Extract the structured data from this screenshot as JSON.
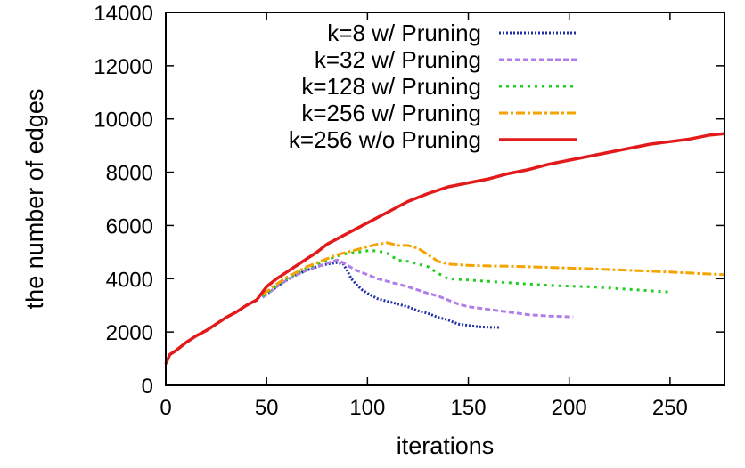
{
  "chart_data": {
    "type": "line",
    "xlabel": "iterations",
    "ylabel": "the number of edges",
    "xlim": [
      0,
      277
    ],
    "ylim": [
      0,
      14000
    ],
    "x_ticks": [
      0,
      50,
      100,
      150,
      200,
      250
    ],
    "y_ticks": [
      0,
      2000,
      4000,
      6000,
      8000,
      10000,
      12000,
      14000
    ],
    "grid": false,
    "legend_position": "top-right",
    "series": [
      {
        "name": "k=8 w/ Pruning",
        "color": "#1f2fa8",
        "dash": "2,2",
        "values": [
          [
            48,
            3300
          ],
          [
            55,
            3700
          ],
          [
            60,
            3950
          ],
          [
            65,
            4150
          ],
          [
            70,
            4320
          ],
          [
            75,
            4450
          ],
          [
            80,
            4550
          ],
          [
            85,
            4600
          ],
          [
            88,
            4550
          ],
          [
            90,
            4300
          ],
          [
            92,
            4000
          ],
          [
            95,
            3750
          ],
          [
            97,
            3600
          ],
          [
            100,
            3450
          ],
          [
            105,
            3250
          ],
          [
            110,
            3150
          ],
          [
            115,
            3050
          ],
          [
            120,
            2950
          ],
          [
            125,
            2800
          ],
          [
            130,
            2700
          ],
          [
            135,
            2550
          ],
          [
            140,
            2450
          ],
          [
            145,
            2300
          ],
          [
            150,
            2250
          ],
          [
            155,
            2200
          ],
          [
            160,
            2180
          ],
          [
            166,
            2170
          ]
        ]
      },
      {
        "name": "k=32 w/ Pruning",
        "color": "#b07ee8",
        "dash": "6,3",
        "values": [
          [
            48,
            3300
          ],
          [
            55,
            3700
          ],
          [
            60,
            3950
          ],
          [
            65,
            4150
          ],
          [
            70,
            4320
          ],
          [
            75,
            4450
          ],
          [
            80,
            4580
          ],
          [
            85,
            4700
          ],
          [
            88,
            4600
          ],
          [
            90,
            4500
          ],
          [
            95,
            4300
          ],
          [
            100,
            4150
          ],
          [
            105,
            4000
          ],
          [
            110,
            3900
          ],
          [
            115,
            3800
          ],
          [
            120,
            3700
          ],
          [
            130,
            3450
          ],
          [
            135,
            3350
          ],
          [
            140,
            3200
          ],
          [
            145,
            3050
          ],
          [
            150,
            2950
          ],
          [
            160,
            2850
          ],
          [
            170,
            2750
          ],
          [
            180,
            2650
          ],
          [
            190,
            2600
          ],
          [
            202,
            2570
          ]
        ]
      },
      {
        "name": "k=128 w/ Pruning",
        "color": "#22cc22",
        "dash": "3,5",
        "values": [
          [
            48,
            3350
          ],
          [
            55,
            3750
          ],
          [
            60,
            4000
          ],
          [
            65,
            4200
          ],
          [
            70,
            4400
          ],
          [
            75,
            4550
          ],
          [
            80,
            4700
          ],
          [
            85,
            4850
          ],
          [
            90,
            4950
          ],
          [
            95,
            5000
          ],
          [
            100,
            5050
          ],
          [
            105,
            5050
          ],
          [
            110,
            4950
          ],
          [
            115,
            4700
          ],
          [
            120,
            4650
          ],
          [
            125,
            4550
          ],
          [
            130,
            4450
          ],
          [
            135,
            4200
          ],
          [
            140,
            4000
          ],
          [
            150,
            3950
          ],
          [
            160,
            3900
          ],
          [
            170,
            3850
          ],
          [
            180,
            3800
          ],
          [
            190,
            3750
          ],
          [
            200,
            3720
          ],
          [
            210,
            3700
          ],
          [
            220,
            3650
          ],
          [
            230,
            3600
          ],
          [
            240,
            3550
          ],
          [
            250,
            3500
          ]
        ]
      },
      {
        "name": "k=256 w/ Pruning",
        "color": "#f5a300",
        "dash": "10,3,3,3",
        "values": [
          [
            48,
            3400
          ],
          [
            55,
            3800
          ],
          [
            60,
            4050
          ],
          [
            65,
            4250
          ],
          [
            70,
            4450
          ],
          [
            75,
            4600
          ],
          [
            80,
            4750
          ],
          [
            85,
            4900
          ],
          [
            90,
            5000
          ],
          [
            95,
            5100
          ],
          [
            100,
            5200
          ],
          [
            105,
            5300
          ],
          [
            110,
            5350
          ],
          [
            115,
            5250
          ],
          [
            120,
            5250
          ],
          [
            125,
            5150
          ],
          [
            130,
            4900
          ],
          [
            135,
            4650
          ],
          [
            140,
            4550
          ],
          [
            150,
            4500
          ],
          [
            160,
            4480
          ],
          [
            175,
            4460
          ],
          [
            200,
            4400
          ],
          [
            225,
            4330
          ],
          [
            250,
            4250
          ],
          [
            277,
            4150
          ]
        ]
      },
      {
        "name": "k=256 w/o Pruning",
        "color": "#e31a1c",
        "dash": "",
        "values": [
          [
            0,
            800
          ],
          [
            2,
            1150
          ],
          [
            5,
            1300
          ],
          [
            10,
            1600
          ],
          [
            15,
            1850
          ],
          [
            20,
            2050
          ],
          [
            25,
            2300
          ],
          [
            30,
            2550
          ],
          [
            35,
            2750
          ],
          [
            40,
            3000
          ],
          [
            45,
            3200
          ],
          [
            50,
            3700
          ],
          [
            55,
            4000
          ],
          [
            60,
            4250
          ],
          [
            65,
            4500
          ],
          [
            70,
            4750
          ],
          [
            75,
            5000
          ],
          [
            80,
            5300
          ],
          [
            85,
            5500
          ],
          [
            90,
            5700
          ],
          [
            95,
            5900
          ],
          [
            100,
            6100
          ],
          [
            110,
            6500
          ],
          [
            120,
            6900
          ],
          [
            130,
            7200
          ],
          [
            140,
            7450
          ],
          [
            150,
            7600
          ],
          [
            160,
            7750
          ],
          [
            170,
            7950
          ],
          [
            180,
            8100
          ],
          [
            190,
            8300
          ],
          [
            200,
            8450
          ],
          [
            210,
            8600
          ],
          [
            220,
            8750
          ],
          [
            230,
            8900
          ],
          [
            240,
            9050
          ],
          [
            250,
            9150
          ],
          [
            260,
            9250
          ],
          [
            270,
            9400
          ],
          [
            277,
            9450
          ]
        ]
      }
    ]
  }
}
